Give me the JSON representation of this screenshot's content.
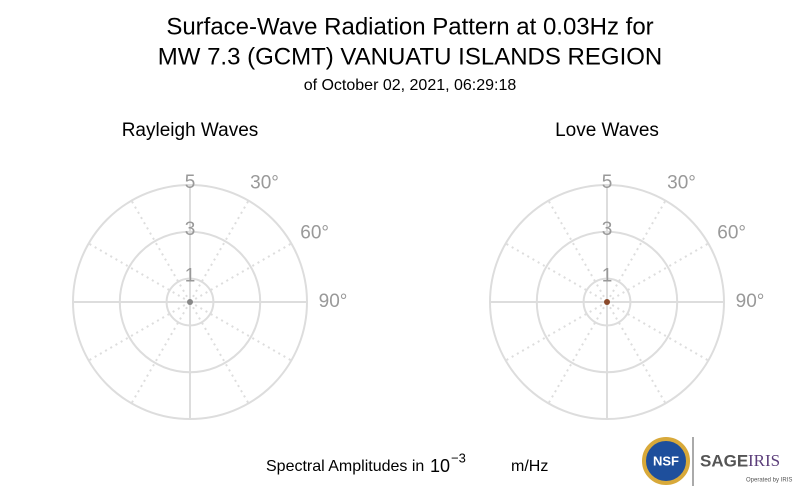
{
  "title": [
    "Surface-Wave Radiation Pattern at 0.03Hz for",
    "MW 7.3 (GCMT) VANUATU ISLANDS REGION"
  ],
  "subtitle": "of October 02, 2021, 06:29:18",
  "chart_data": [
    {
      "type": "polar",
      "title": "Rayleigh Waves",
      "rlim": [
        0,
        5
      ],
      "rticks": [
        1,
        3,
        5
      ],
      "thetaticks": [
        {
          "value": 30,
          "label": "30°"
        },
        {
          "value": 60,
          "label": "60°"
        },
        {
          "value": 90,
          "label": "90°"
        }
      ],
      "grid": true,
      "series": [
        {
          "color": "#888888",
          "theta": [
            0
          ],
          "r": [
            0
          ]
        }
      ]
    },
    {
      "type": "polar",
      "title": "Love Waves",
      "rlim": [
        0,
        5
      ],
      "rticks": [
        1,
        3,
        5
      ],
      "thetaticks": [
        {
          "value": 30,
          "label": "30°"
        },
        {
          "value": 60,
          "label": "60°"
        },
        {
          "value": 90,
          "label": "90°"
        }
      ],
      "grid": true,
      "series": [
        {
          "color": "#8b4a2b",
          "theta": [
            0
          ],
          "r": [
            0
          ]
        }
      ]
    }
  ],
  "footer": {
    "label": "Spectral Amplitudes in",
    "base": "10",
    "exponent": "−3",
    "unit": "m/Hz"
  },
  "logos": {
    "nsf": "NSF",
    "sage": "SAGE",
    "iris": "IRIS",
    "operated": "Operated by IRIS"
  }
}
